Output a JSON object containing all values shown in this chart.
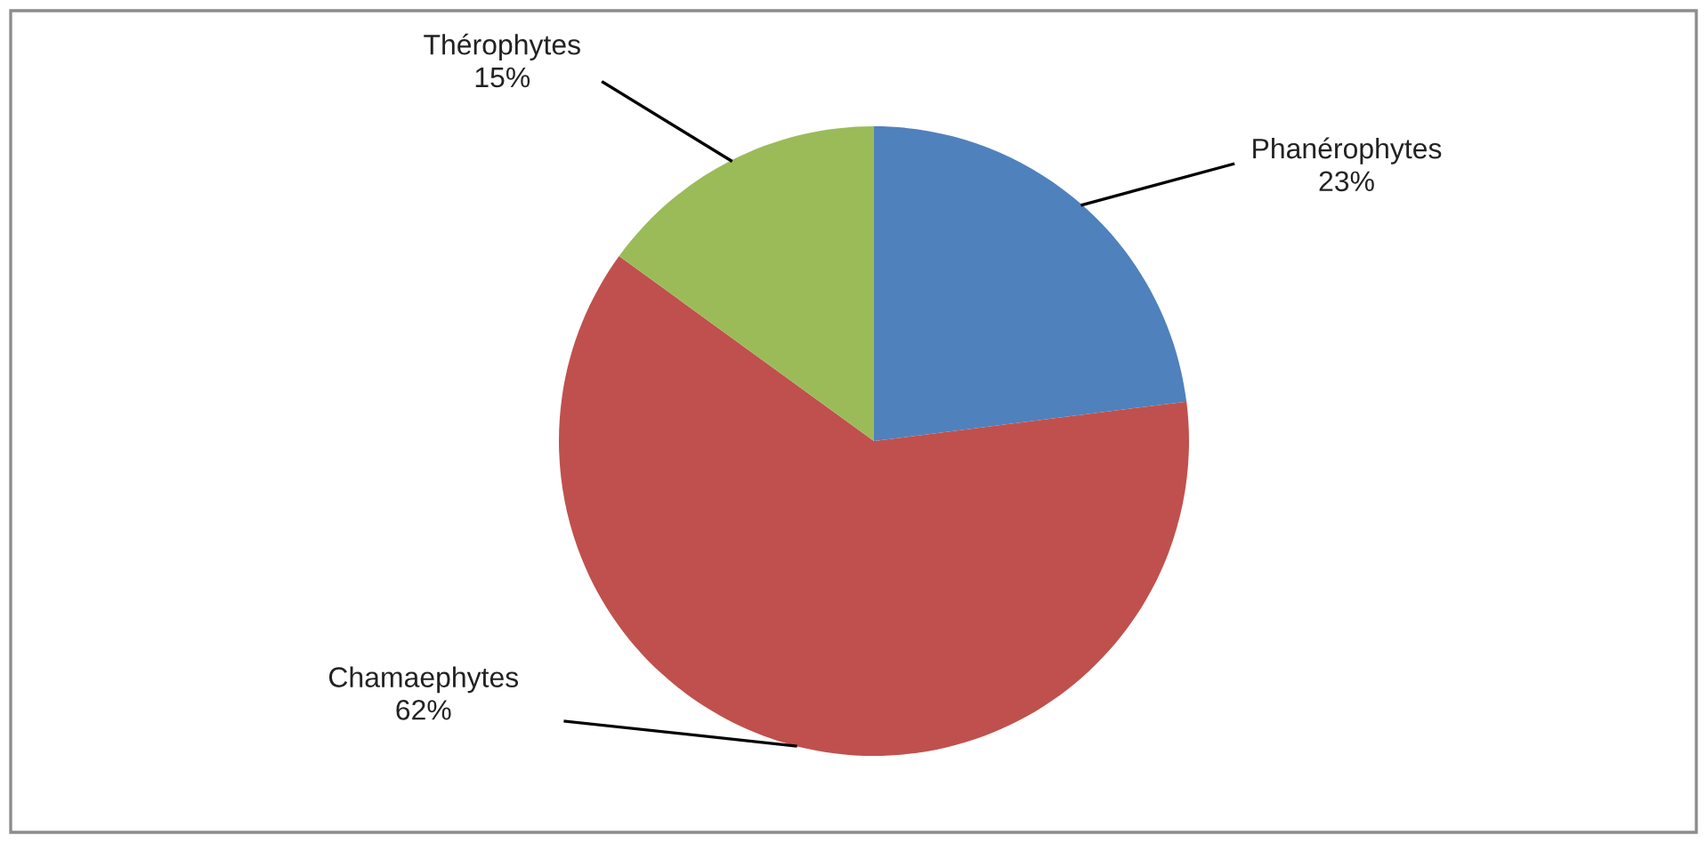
{
  "chart_data": {
    "type": "pie",
    "categories": [
      "Phanérophytes",
      "Chamaephytes",
      "Thérophytes"
    ],
    "values": [
      23,
      62,
      15
    ],
    "colors": [
      "#4f81bd",
      "#c0504d",
      "#9bbb59"
    ],
    "value_labels": [
      "23%",
      "62%",
      "15%"
    ]
  }
}
